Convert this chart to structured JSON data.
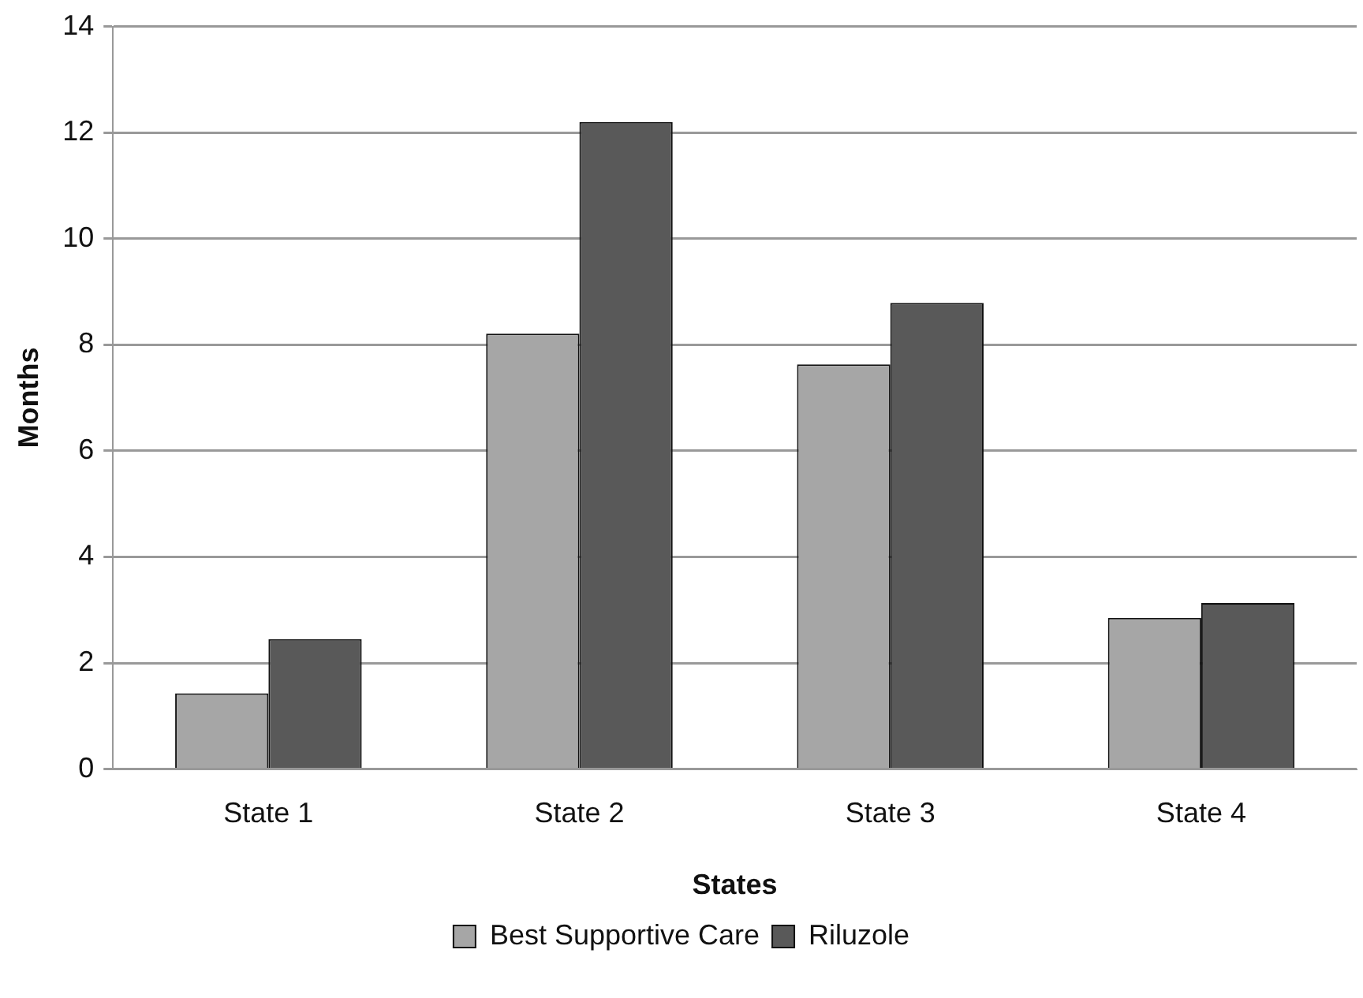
{
  "chart_data": {
    "type": "bar",
    "xlabel": "States",
    "ylabel": "Months",
    "categories": [
      "State 1",
      "State 2",
      "State 3",
      "State 4"
    ],
    "series": [
      {
        "name": "Best Supportive Care",
        "color": "#a6a6a6",
        "values": [
          1.43,
          8.21,
          7.63,
          2.85
        ]
      },
      {
        "name": "Riluzole",
        "color": "#595959",
        "values": [
          2.45,
          12.2,
          8.79,
          3.13
        ]
      }
    ],
    "ylim": [
      0,
      14
    ],
    "yticks": [
      0,
      2,
      4,
      6,
      8,
      10,
      12,
      14
    ],
    "grid": "y",
    "legend": "bottom"
  }
}
